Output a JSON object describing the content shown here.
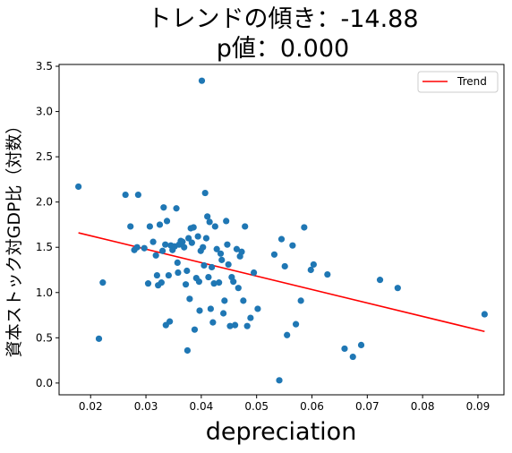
{
  "chart_data": {
    "type": "scatter",
    "title_line1": "トレンドの傾き：-14.88",
    "title_line2": "p値：0.000",
    "xlabel": "depreciation",
    "ylabel": "資本ストック対GDP比（対数）",
    "xlim": [
      0.0143,
      0.0947
    ],
    "ylim": [
      -0.13,
      3.52
    ],
    "x_ticks": [
      "0.02",
      "0.03",
      "0.04",
      "0.05",
      "0.06",
      "0.07",
      "0.08",
      "0.09"
    ],
    "x_tick_values": [
      0.02,
      0.03,
      0.04,
      0.05,
      0.06,
      0.07,
      0.08,
      0.09
    ],
    "y_ticks": [
      "0.0",
      "0.5",
      "1.0",
      "1.5",
      "2.0",
      "2.5",
      "3.0",
      "3.5"
    ],
    "y_tick_values": [
      0.0,
      0.5,
      1.0,
      1.5,
      2.0,
      2.5,
      3.0,
      3.5
    ],
    "legend": {
      "label": "Trend",
      "position": "top-right"
    },
    "colors": {
      "points": "#1f77b4",
      "trend": "#ff0000"
    },
    "trend": {
      "x": [
        0.0178,
        0.0912
      ],
      "y": [
        1.66,
        0.57
      ]
    },
    "points": [
      [
        0.0178,
        2.17
      ],
      [
        0.0215,
        0.49
      ],
      [
        0.0222,
        1.11
      ],
      [
        0.0263,
        2.08
      ],
      [
        0.0272,
        1.73
      ],
      [
        0.0279,
        1.47
      ],
      [
        0.0284,
        1.5
      ],
      [
        0.0286,
        2.08
      ],
      [
        0.0297,
        1.49
      ],
      [
        0.0304,
        1.1
      ],
      [
        0.0307,
        1.73
      ],
      [
        0.0313,
        1.56
      ],
      [
        0.0318,
        1.41
      ],
      [
        0.032,
        1.19
      ],
      [
        0.0322,
        1.08
      ],
      [
        0.0325,
        1.75
      ],
      [
        0.0328,
        1.11
      ],
      [
        0.033,
        1.46
      ],
      [
        0.0332,
        1.94
      ],
      [
        0.0335,
        1.53
      ],
      [
        0.0336,
        0.64
      ],
      [
        0.0338,
        1.79
      ],
      [
        0.0341,
        1.19
      ],
      [
        0.0343,
        0.68
      ],
      [
        0.0345,
        1.52
      ],
      [
        0.0348,
        1.47
      ],
      [
        0.0352,
        1.51
      ],
      [
        0.0355,
        1.93
      ],
      [
        0.0357,
        1.33
      ],
      [
        0.0358,
        1.22
      ],
      [
        0.036,
        1.53
      ],
      [
        0.0363,
        1.57
      ],
      [
        0.0366,
        1.56
      ],
      [
        0.0369,
        1.5
      ],
      [
        0.0372,
        1.09
      ],
      [
        0.0374,
        1.24
      ],
      [
        0.0375,
        0.36
      ],
      [
        0.0377,
        1.6
      ],
      [
        0.0379,
        0.93
      ],
      [
        0.0381,
        1.71
      ],
      [
        0.0383,
        1.55
      ],
      [
        0.0386,
        1.72
      ],
      [
        0.0388,
        0.59
      ],
      [
        0.0391,
        1.16
      ],
      [
        0.0394,
        1.62
      ],
      [
        0.0396,
        1.12
      ],
      [
        0.0397,
        0.8
      ],
      [
        0.0399,
        1.46
      ],
      [
        0.0401,
        3.34
      ],
      [
        0.0403,
        1.5
      ],
      [
        0.0405,
        1.3
      ],
      [
        0.0407,
        2.1
      ],
      [
        0.0409,
        1.6
      ],
      [
        0.0411,
        1.84
      ],
      [
        0.0413,
        1.17
      ],
      [
        0.0415,
        1.78
      ],
      [
        0.0417,
        0.82
      ],
      [
        0.0419,
        1.28
      ],
      [
        0.0421,
        0.67
      ],
      [
        0.0423,
        1.1
      ],
      [
        0.0425,
        1.73
      ],
      [
        0.0428,
        1.48
      ],
      [
        0.0432,
        1.11
      ],
      [
        0.0435,
        1.43
      ],
      [
        0.0437,
        1.36
      ],
      [
        0.044,
        0.77
      ],
      [
        0.0442,
        0.91
      ],
      [
        0.0445,
        1.79
      ],
      [
        0.0447,
        1.53
      ],
      [
        0.0449,
        1.31
      ],
      [
        0.0452,
        0.63
      ],
      [
        0.0455,
        1.17
      ],
      [
        0.0458,
        1.12
      ],
      [
        0.0461,
        0.64
      ],
      [
        0.0464,
        1.48
      ],
      [
        0.0467,
        1.05
      ],
      [
        0.047,
        1.4
      ],
      [
        0.0473,
        1.45
      ],
      [
        0.0476,
        0.91
      ],
      [
        0.0479,
        1.73
      ],
      [
        0.0483,
        0.63
      ],
      [
        0.0489,
        0.72
      ],
      [
        0.0495,
        1.22
      ],
      [
        0.0502,
        0.82
      ],
      [
        0.0532,
        1.42
      ],
      [
        0.0541,
        0.03
      ],
      [
        0.0545,
        1.59
      ],
      [
        0.0551,
        1.29
      ],
      [
        0.0555,
        0.53
      ],
      [
        0.0565,
        1.52
      ],
      [
        0.0571,
        0.65
      ],
      [
        0.058,
        0.91
      ],
      [
        0.0586,
        1.72
      ],
      [
        0.0598,
        1.25
      ],
      [
        0.0603,
        1.31
      ],
      [
        0.0628,
        1.2
      ],
      [
        0.0659,
        0.38
      ],
      [
        0.0674,
        0.29
      ],
      [
        0.0689,
        0.42
      ],
      [
        0.0723,
        1.14
      ],
      [
        0.0755,
        1.05
      ],
      [
        0.0912,
        0.76
      ]
    ]
  }
}
